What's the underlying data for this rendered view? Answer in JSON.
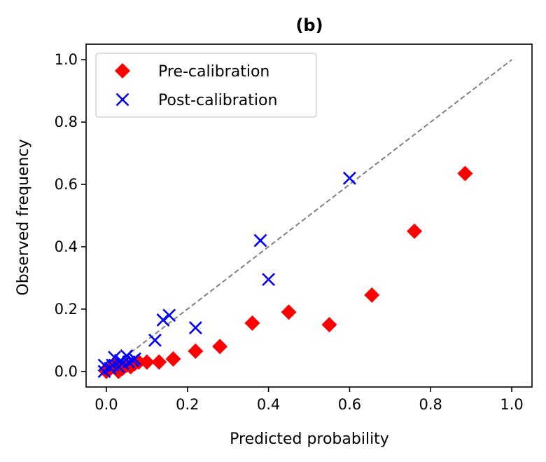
{
  "chart_data": {
    "type": "scatter",
    "title": "(b)",
    "xlabel": "Predicted probability",
    "ylabel": "Observed frequency",
    "xlim": [
      -0.05,
      1.05
    ],
    "ylim": [
      -0.05,
      1.05
    ],
    "xticks": [
      0.0,
      0.2,
      0.4,
      0.6,
      0.8,
      1.0
    ],
    "yticks": [
      0.0,
      0.2,
      0.4,
      0.6,
      0.8,
      1.0
    ],
    "xtick_labels": [
      "0.0",
      "0.2",
      "0.4",
      "0.6",
      "0.8",
      "1.0"
    ],
    "ytick_labels": [
      "0.0",
      "0.2",
      "0.4",
      "0.6",
      "0.8",
      "1.0"
    ],
    "reference_line": {
      "name": "perfect calibration",
      "x": [
        0.0,
        1.0
      ],
      "y": [
        0.0,
        1.0
      ],
      "color": "#808080",
      "style": "dashed"
    },
    "legend_position": "upper-left",
    "series": [
      {
        "name": "Pre-calibration",
        "marker": "diamond",
        "color": "#ff0000",
        "points": [
          [
            0.0,
            0.0
          ],
          [
            0.01,
            0.01
          ],
          [
            0.02,
            0.02
          ],
          [
            0.03,
            0.0
          ],
          [
            0.04,
            0.01
          ],
          [
            0.05,
            0.02
          ],
          [
            0.06,
            0.015
          ],
          [
            0.07,
            0.025
          ],
          [
            0.08,
            0.03
          ],
          [
            0.1,
            0.03
          ],
          [
            0.13,
            0.03
          ],
          [
            0.165,
            0.04
          ],
          [
            0.22,
            0.065
          ],
          [
            0.28,
            0.08
          ],
          [
            0.36,
            0.155
          ],
          [
            0.45,
            0.19
          ],
          [
            0.55,
            0.15
          ],
          [
            0.655,
            0.245
          ],
          [
            0.76,
            0.45
          ],
          [
            0.885,
            0.635
          ]
        ]
      },
      {
        "name": "Post-calibration",
        "marker": "x",
        "color": "#0000ff",
        "points": [
          [
            -0.005,
            0.0
          ],
          [
            -0.005,
            0.02
          ],
          [
            0.01,
            0.01
          ],
          [
            0.015,
            0.02
          ],
          [
            0.02,
            0.045
          ],
          [
            0.03,
            0.015
          ],
          [
            0.035,
            0.035
          ],
          [
            0.04,
            0.025
          ],
          [
            0.05,
            0.05
          ],
          [
            0.055,
            0.03
          ],
          [
            0.065,
            0.035
          ],
          [
            0.07,
            0.04
          ],
          [
            0.12,
            0.1
          ],
          [
            0.14,
            0.165
          ],
          [
            0.155,
            0.18
          ],
          [
            0.22,
            0.14
          ],
          [
            0.38,
            0.42
          ],
          [
            0.4,
            0.295
          ],
          [
            0.6,
            0.62
          ]
        ]
      }
    ]
  }
}
